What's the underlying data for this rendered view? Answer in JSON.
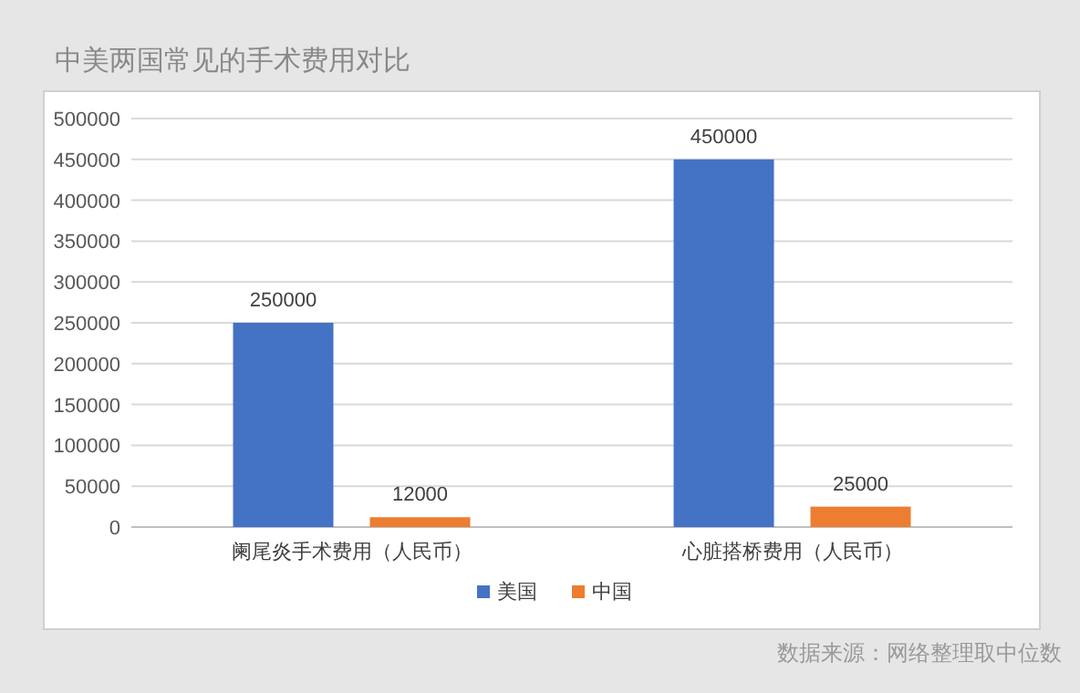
{
  "chart_data": {
    "type": "bar",
    "title": "中美两国常见的手术费用对比",
    "categories": [
      "阑尾炎手术费用（人民币）",
      "心脏搭桥费用（人民币）"
    ],
    "series": [
      {
        "name": "美国",
        "color": "#4472c4",
        "values": [
          250000,
          450000
        ]
      },
      {
        "name": "中国",
        "color": "#ed7d31",
        "values": [
          12000,
          25000
        ]
      }
    ],
    "ylim": [
      0,
      500000
    ],
    "yticks": [
      0,
      50000,
      100000,
      150000,
      200000,
      250000,
      300000,
      350000,
      400000,
      450000,
      500000
    ],
    "grid": "y",
    "legend": "bottom",
    "data_labels": true,
    "annotations": [
      "数据来源：网络整理取中位数"
    ]
  }
}
